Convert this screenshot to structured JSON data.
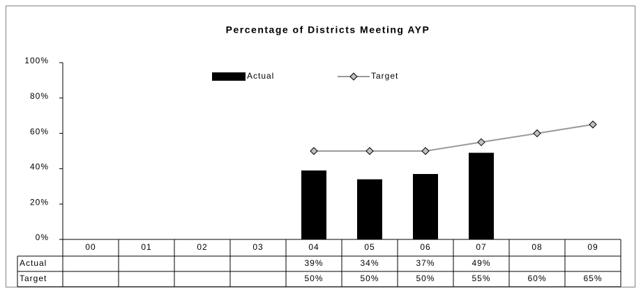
{
  "chart_data": {
    "type": "bar_line",
    "title": "Percentage of Districts Meeting AYP",
    "categories": [
      "00",
      "01",
      "02",
      "03",
      "04",
      "05",
      "06",
      "07",
      "08",
      "09"
    ],
    "series": [
      {
        "name": "Actual",
        "type": "bar",
        "color": "#000000",
        "values": [
          null,
          null,
          null,
          null,
          39,
          34,
          37,
          49,
          null,
          null
        ],
        "value_labels": [
          null,
          null,
          null,
          null,
          "39%",
          "34%",
          "37%",
          "49%",
          null,
          null
        ]
      },
      {
        "name": "Target",
        "type": "line",
        "color": "#999999",
        "marker_color": "#c0c0c0",
        "values": [
          null,
          null,
          null,
          null,
          50,
          50,
          50,
          55,
          60,
          65
        ],
        "value_labels": [
          null,
          null,
          null,
          null,
          "50%",
          "50%",
          "50%",
          "55%",
          "60%",
          "65%"
        ]
      }
    ],
    "ylim": [
      0,
      100
    ],
    "yticks": [
      {
        "value": 0,
        "label": "0%"
      },
      {
        "value": 20,
        "label": "20%"
      },
      {
        "value": 40,
        "label": "40%"
      },
      {
        "value": 60,
        "label": "60%"
      },
      {
        "value": 80,
        "label": "80%"
      },
      {
        "value": 100,
        "label": "100%"
      }
    ],
    "grid": false,
    "legend": "top"
  }
}
